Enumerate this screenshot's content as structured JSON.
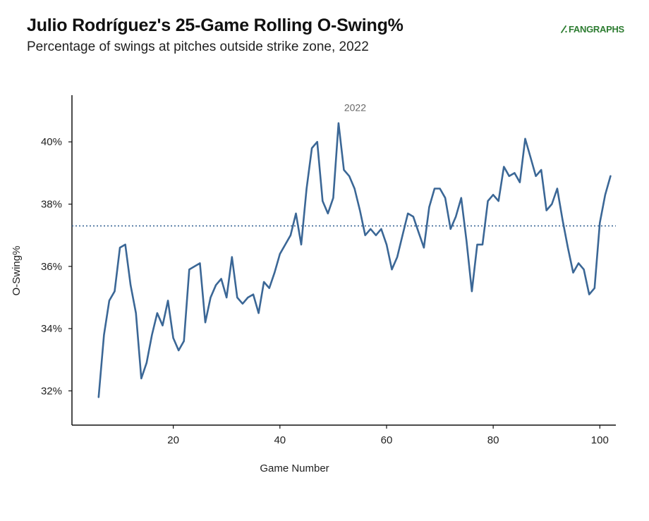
{
  "header": {
    "title": "Julio Rodríguez's 25-Game Rolling O-Swing%",
    "subtitle": "Percentage of swings at pitches outside strike zone, 2022",
    "logo_text": "FANGRAPHS",
    "logo_icon": "bat-icon",
    "logo_color": "#2e7d32"
  },
  "chart_data": {
    "type": "line",
    "xlabel": "Game Number",
    "ylabel": "O-Swing%",
    "xlim": [
      1,
      103
    ],
    "ylim": [
      30.9,
      41.5
    ],
    "x_ticks": [
      20,
      40,
      60,
      80,
      100
    ],
    "y_ticks": [
      32,
      34,
      36,
      38,
      40
    ],
    "y_tick_suffix": "%",
    "grid": false,
    "line_color": "#3b6796",
    "reference_line": {
      "value": 37.3,
      "style": "dotted",
      "color": "#3b6796"
    },
    "annotation": {
      "text": "2022",
      "x": 51.2,
      "y": 40.95
    },
    "series": [
      {
        "x": [
          6,
          7,
          8,
          9,
          10,
          11,
          12,
          13,
          14,
          15,
          16,
          17,
          18,
          19,
          20,
          21,
          22,
          23,
          24,
          25,
          26,
          27,
          28,
          29,
          30,
          31,
          32,
          33,
          34,
          35,
          36,
          37,
          38,
          39,
          40,
          41,
          42,
          43,
          44,
          45,
          46,
          47,
          48,
          49,
          50,
          51,
          52,
          53,
          54,
          55,
          56,
          57,
          58,
          59,
          60,
          61,
          62,
          63,
          64,
          65,
          66,
          67,
          68,
          69,
          70,
          71,
          72,
          73,
          74,
          75,
          76,
          77,
          78,
          79,
          80,
          81,
          82,
          83,
          84,
          85,
          86,
          87,
          88,
          89,
          90,
          91,
          92,
          93,
          94,
          95,
          96,
          97,
          98,
          99,
          100,
          101,
          102
        ],
        "values": [
          31.8,
          33.8,
          34.9,
          35.2,
          36.6,
          36.7,
          35.4,
          34.5,
          32.4,
          32.9,
          33.8,
          34.5,
          34.1,
          34.9,
          33.7,
          33.3,
          33.6,
          35.9,
          36.0,
          36.1,
          34.2,
          35.0,
          35.4,
          35.6,
          35.0,
          36.3,
          35.0,
          34.8,
          35.0,
          35.1,
          34.5,
          35.5,
          35.3,
          35.8,
          36.4,
          36.7,
          37.0,
          37.7,
          36.7,
          38.5,
          39.8,
          40.0,
          38.1,
          37.7,
          38.2,
          40.6,
          39.1,
          38.9,
          38.5,
          37.8,
          37.0,
          37.2,
          37.0,
          37.2,
          36.7,
          35.9,
          36.3,
          37.0,
          37.7,
          37.6,
          37.1,
          36.6,
          37.9,
          38.5,
          38.5,
          38.2,
          37.2,
          37.6,
          38.2,
          36.8,
          35.2,
          36.7,
          36.7,
          38.1,
          38.3,
          38.1,
          39.2,
          38.9,
          39.0,
          38.7,
          40.1,
          39.5,
          38.9,
          39.1,
          37.8,
          38.0,
          38.5,
          37.5,
          36.6,
          35.8,
          36.1,
          35.9,
          35.1,
          35.3,
          37.4,
          38.3,
          38.9
        ]
      }
    ]
  }
}
